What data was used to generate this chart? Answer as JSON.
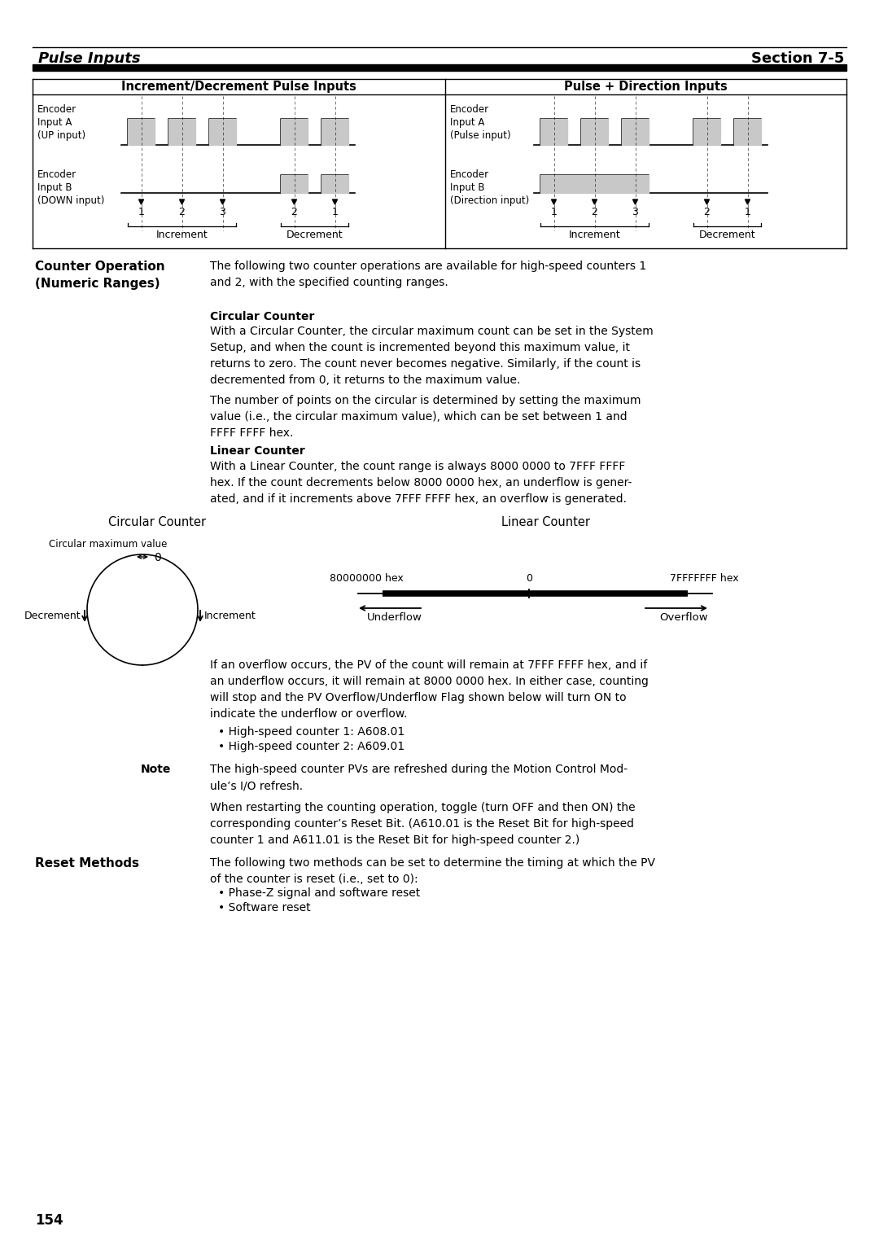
{
  "page_title_left": "Pulse Inputs",
  "page_title_right": "Section 7-5",
  "page_number": "154",
  "header_left": "Increment/Decrement Pulse Inputs",
  "header_right": "Pulse + Direction Inputs",
  "section_bold_left": "Counter Operation\n(Numeric Ranges)",
  "para1": "The following two counter operations are available for high-speed counters 1\nand 2, with the specified counting ranges.",
  "subhead1": "Circular Counter",
  "para2": "With a Circular Counter, the circular maximum count can be set in the System\nSetup, and when the count is incremented beyond this maximum value, it\nreturns to zero. The count never becomes negative. Similarly, if the count is\ndecremented from 0, it returns to the maximum value.",
  "para3": "The number of points on the circular is determined by setting the maximum\nvalue (i.e., the circular maximum value), which can be set between 1 and\nFFFF FFFF hex.",
  "subhead2": "Linear Counter",
  "para4": "With a Linear Counter, the count range is always 8000 0000 to 7FFF FFFF\nhex. If the count decrements below 8000 0000 hex, an underflow is gener-\nated, and if it increments above 7FFF FFFF hex, an overflow is generated.",
  "circ_title": "Circular Counter",
  "linear_title": "Linear Counter",
  "circ_max_label": "Circular maximum value",
  "linear_left_label": "80000000 hex",
  "linear_zero": "0",
  "linear_right_label": "7FFFFFFF hex",
  "underflow_label": "Underflow",
  "overflow_label": "Overflow",
  "para5": "If an overflow occurs, the PV of the count will remain at 7FFF FFFF hex, and if\nan underflow occurs, it will remain at 8000 0000 hex. In either case, counting\nwill stop and the PV Overflow/Underflow Flag shown below will turn ON to\nindicate the underflow or overflow.",
  "bullet1": "• High-speed counter 1: A608.01",
  "bullet2": "• High-speed counter 2: A609.01",
  "note_label": "Note",
  "note_text": "The high-speed counter PVs are refreshed during the Motion Control Mod-\nule’s I/O refresh.",
  "para6": "When restarting the counting operation, toggle (turn OFF and then ON) the\ncorresponding counter’s Reset Bit. (A610.01 is the Reset Bit for high-speed\ncounter 1 and A611.01 is the Reset Bit for high-speed counter 2.)",
  "section_bold_left2": "Reset Methods",
  "para7": "The following two methods can be set to determine the timing at which the PV\nof the counter is reset (i.e., set to 0):",
  "bullet3": "• Phase-Z signal and software reset",
  "bullet4": "• Software reset",
  "bg_color": "#ffffff",
  "gray_fill": "#c8c8c8"
}
